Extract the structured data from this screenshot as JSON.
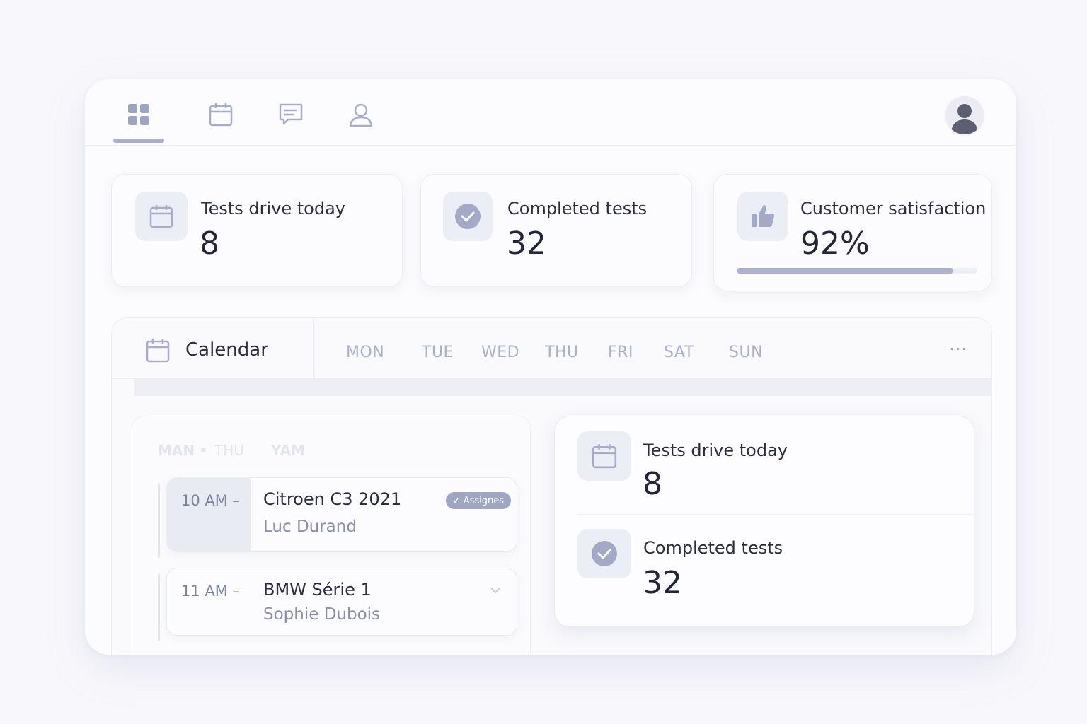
{
  "nav": {
    "items": [
      {
        "icon": "dashboard-icon",
        "active": true
      },
      {
        "icon": "calendar-icon",
        "active": false
      },
      {
        "icon": "chat-icon",
        "active": false
      },
      {
        "icon": "user-icon",
        "active": false
      }
    ],
    "avatar_icon": "avatar"
  },
  "stats": {
    "tests_today": {
      "label": "Tests drive today",
      "value": "8",
      "icon": "calendar-icon"
    },
    "completed": {
      "label": "Completed tests",
      "value": "32",
      "icon": "check-circle-icon"
    },
    "satisfaction": {
      "label": "Customer satisfaction",
      "value": "92%",
      "progress": 0.9,
      "icon": "thumbs-up-icon"
    }
  },
  "calendar": {
    "title": "Calendar",
    "days": [
      "MON",
      "TUE",
      "WED",
      "THU",
      "FRI",
      "SAT",
      "SUN"
    ],
    "more": "···"
  },
  "schedule": {
    "ghost_labels": [
      "MAN",
      "THU",
      "YAM"
    ],
    "appointments": [
      {
        "time": "10 AM  –",
        "car": "Citroen C3 2021",
        "driver": "Luc Durand",
        "badge": "Assignes"
      },
      {
        "time": "11 AM  –",
        "car": "BMW Série 1",
        "driver": "Sophie Dubois"
      }
    ]
  },
  "summary": {
    "tests_today": {
      "label": "Tests drive today",
      "value": "8"
    },
    "completed": {
      "label": "Completed tests",
      "value": "32"
    }
  },
  "colors": {
    "accent": "#aab0cc",
    "icon": "#9ea4c2",
    "background": "#f8f8fc",
    "card": "#fcfcfe"
  }
}
